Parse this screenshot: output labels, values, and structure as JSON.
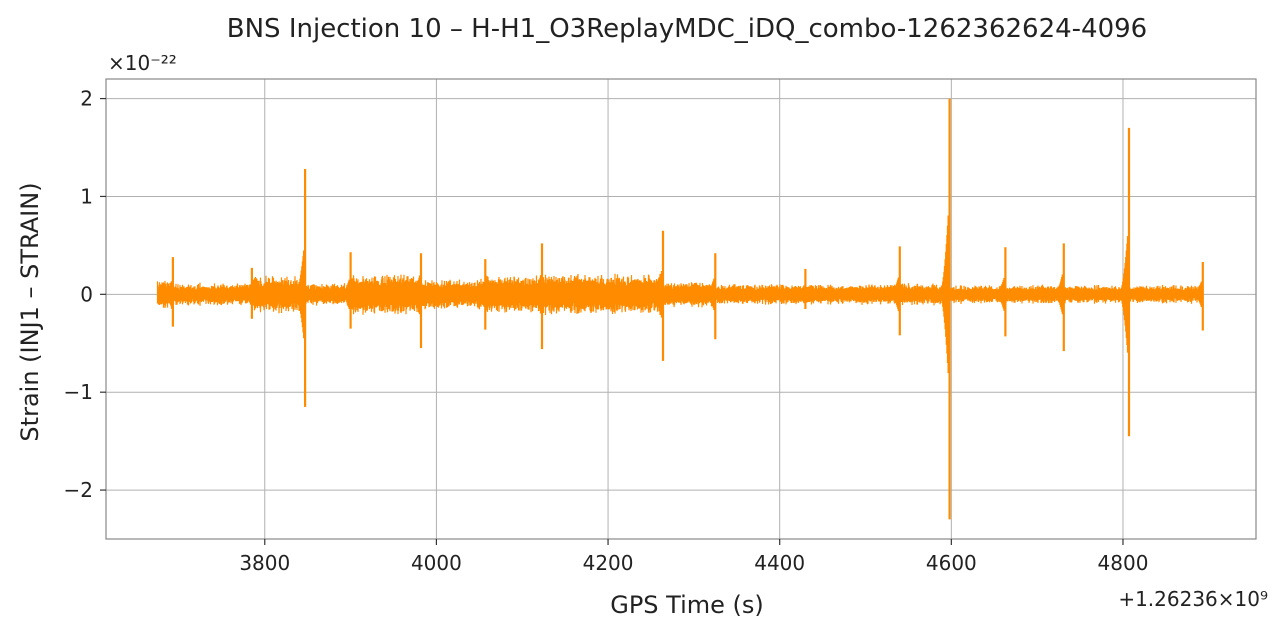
{
  "chart_data": {
    "type": "line",
    "title": "BNS Injection 10 – H-H1_O3ReplayMDC_iDQ_combo-1262362624-4096",
    "xlabel": "GPS Time (s)",
    "ylabel": "Strain (INJ1 – STRAIN)",
    "x_offset_label": "+1.26236×10⁹",
    "y_scale_label": "×10⁻²²",
    "xlim": [
      3615,
      4955
    ],
    "ylim": [
      -2.5,
      2.2
    ],
    "x_ticks": [
      3800,
      4000,
      4200,
      4400,
      4600,
      4800
    ],
    "y_ticks": [
      -2,
      -1,
      0,
      1,
      2
    ],
    "x_tick_labels": [
      "3800",
      "4000",
      "4200",
      "4400",
      "4600",
      "4800"
    ],
    "y_tick_labels": [
      "−2",
      "−1",
      "0",
      "1",
      "2"
    ],
    "grid": true,
    "color": "#ff8c00",
    "x_range": [
      3675,
      4893
    ],
    "baseline_amplitude": 0.13,
    "segments": [
      {
        "x_start": 3675,
        "x_end": 3693,
        "amp": 0.16
      },
      {
        "x_start": 3693,
        "x_end": 3785,
        "amp": 0.12
      },
      {
        "x_start": 3785,
        "x_end": 3847,
        "amp": 0.2
      },
      {
        "x_start": 3847,
        "x_end": 3900,
        "amp": 0.12
      },
      {
        "x_start": 3900,
        "x_end": 3982,
        "amp": 0.22
      },
      {
        "x_start": 3982,
        "x_end": 4057,
        "amp": 0.16
      },
      {
        "x_start": 4057,
        "x_end": 4123,
        "amp": 0.2
      },
      {
        "x_start": 4123,
        "x_end": 4264,
        "amp": 0.22
      },
      {
        "x_start": 4264,
        "x_end": 4325,
        "amp": 0.14
      },
      {
        "x_start": 4325,
        "x_end": 4540,
        "amp": 0.11
      },
      {
        "x_start": 4540,
        "x_end": 4598,
        "amp": 0.12
      },
      {
        "x_start": 4598,
        "x_end": 4893,
        "amp": 0.1
      }
    ],
    "glitches": [
      {
        "x": 3693,
        "max": 0.38,
        "min": -0.33
      },
      {
        "x": 3785,
        "max": 0.27,
        "min": -0.25
      },
      {
        "x": 3847,
        "max": 1.28,
        "min": -1.15
      },
      {
        "x": 3900,
        "max": 0.43,
        "min": -0.35
      },
      {
        "x": 3982,
        "max": 0.42,
        "min": -0.55
      },
      {
        "x": 4057,
        "max": 0.36,
        "min": -0.36
      },
      {
        "x": 4123,
        "max": 0.52,
        "min": -0.56
      },
      {
        "x": 4264,
        "max": 0.65,
        "min": -0.68
      },
      {
        "x": 4325,
        "max": 0.42,
        "min": -0.46
      },
      {
        "x": 4430,
        "max": 0.26,
        "min": -0.15
      },
      {
        "x": 4540,
        "max": 0.49,
        "min": -0.42
      },
      {
        "x": 4598,
        "max": 2.0,
        "min": -2.3
      },
      {
        "x": 4663,
        "max": 0.48,
        "min": -0.43
      },
      {
        "x": 4731,
        "max": 0.52,
        "min": -0.58
      },
      {
        "x": 4807,
        "max": 1.7,
        "min": -1.45
      },
      {
        "x": 4893,
        "max": 0.33,
        "min": -0.37
      }
    ]
  }
}
